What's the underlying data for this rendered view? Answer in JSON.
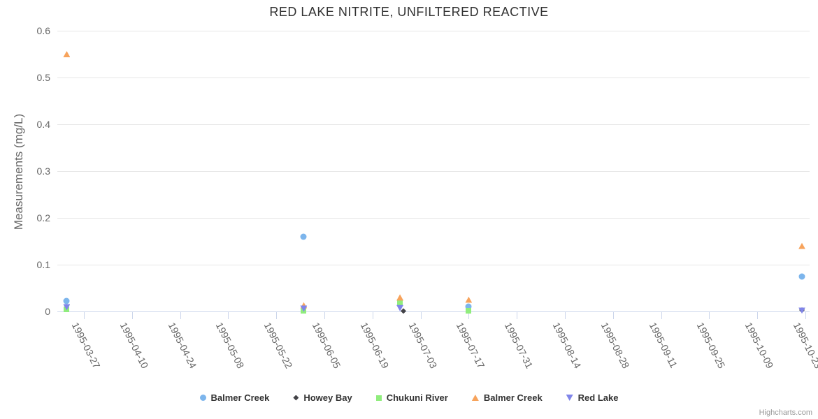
{
  "credits_label": "Highcharts.com",
  "colors": {
    "background": "#ffffff",
    "title_text": "#333333",
    "axis_text": "#666666",
    "grid_line": "#e6e6e6",
    "axis_line": "#ccd6eb",
    "legend_text": "#333333",
    "credits_text": "#999999"
  },
  "chart_data": {
    "type": "scatter",
    "title": "RED LAKE NITRITE, UNFILTERED REACTIVE",
    "xlabel": "",
    "ylabel": "Measurements (mg/L)",
    "ylim": [
      0,
      0.6
    ],
    "y_ticks": [
      0,
      0.1,
      0.2,
      0.3,
      0.4,
      0.5,
      0.6
    ],
    "x_tick_interval_days": 14,
    "x_ticks": [
      "1995-03-27",
      "1995-04-10",
      "1995-04-24",
      "1995-05-08",
      "1995-05-22",
      "1995-06-05",
      "1995-06-19",
      "1995-07-03",
      "1995-07-17",
      "1995-07-31",
      "1995-08-14",
      "1995-08-28",
      "1995-09-11",
      "1995-09-25",
      "1995-10-09",
      "1995-10-23"
    ],
    "grid": "horizontal",
    "legend_position": "bottom",
    "series": [
      {
        "name": "Balmer Creek",
        "marker": "circle",
        "color": "#7cb5ec",
        "points": [
          {
            "date": "1995-03-22",
            "value": 0.022
          },
          {
            "date": "1995-05-30",
            "value": 0.16
          },
          {
            "date": "1995-07-17",
            "value": 0.01
          },
          {
            "date": "1995-10-22",
            "value": 0.075
          }
        ]
      },
      {
        "name": "Howey Bay",
        "marker": "diamond",
        "color": "#434348",
        "points": [
          {
            "date": "1995-05-30",
            "value": 0.004
          },
          {
            "date": "1995-06-28",
            "value": 0.001
          },
          {
            "date": "1995-10-22",
            "value": 0.003
          }
        ]
      },
      {
        "name": "Chukuni River",
        "marker": "square",
        "color": "#90ed7d",
        "points": [
          {
            "date": "1995-03-22",
            "value": 0.004
          },
          {
            "date": "1995-05-30",
            "value": 0.002
          },
          {
            "date": "1995-06-27",
            "value": 0.019
          },
          {
            "date": "1995-07-17",
            "value": 0.002
          }
        ]
      },
      {
        "name": "Balmer Creek",
        "marker": "triangle",
        "color": "#f7a35c",
        "points": [
          {
            "date": "1995-03-22",
            "value": 0.55
          },
          {
            "date": "1995-05-30",
            "value": 0.013
          },
          {
            "date": "1995-06-27",
            "value": 0.03
          },
          {
            "date": "1995-07-17",
            "value": 0.025
          },
          {
            "date": "1995-10-22",
            "value": 0.14
          }
        ]
      },
      {
        "name": "Red Lake",
        "marker": "triangle-down",
        "color": "#8085e9",
        "points": [
          {
            "date": "1995-03-22",
            "value": 0.009
          },
          {
            "date": "1995-05-30",
            "value": 0.006
          },
          {
            "date": "1995-06-27",
            "value": 0.007
          },
          {
            "date": "1995-10-22",
            "value": 0.002
          }
        ]
      }
    ]
  }
}
